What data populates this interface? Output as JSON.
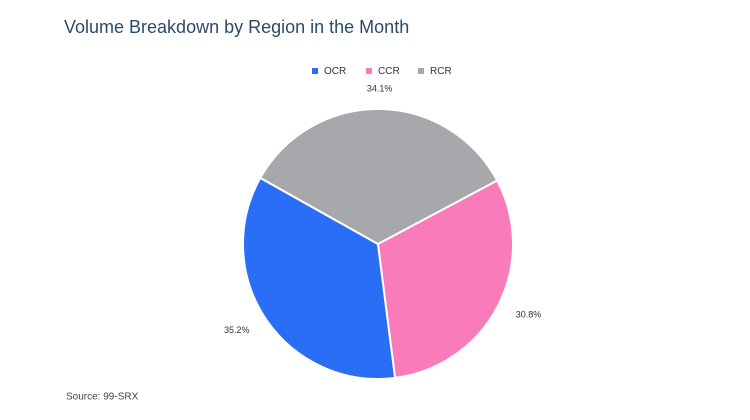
{
  "chart_data": {
    "type": "pie",
    "title": "Volume Breakdown by Region in the Month",
    "categories": [
      "OCR",
      "CCR",
      "RCR"
    ],
    "values": [
      35.2,
      30.8,
      34.1
    ],
    "value_labels": [
      "35.2%",
      "30.8%",
      "34.1%"
    ],
    "colors": [
      "#2a6ef5",
      "#f97bba",
      "#a7a8ab"
    ],
    "legend": "top",
    "source": "Source: 99-SRX"
  }
}
